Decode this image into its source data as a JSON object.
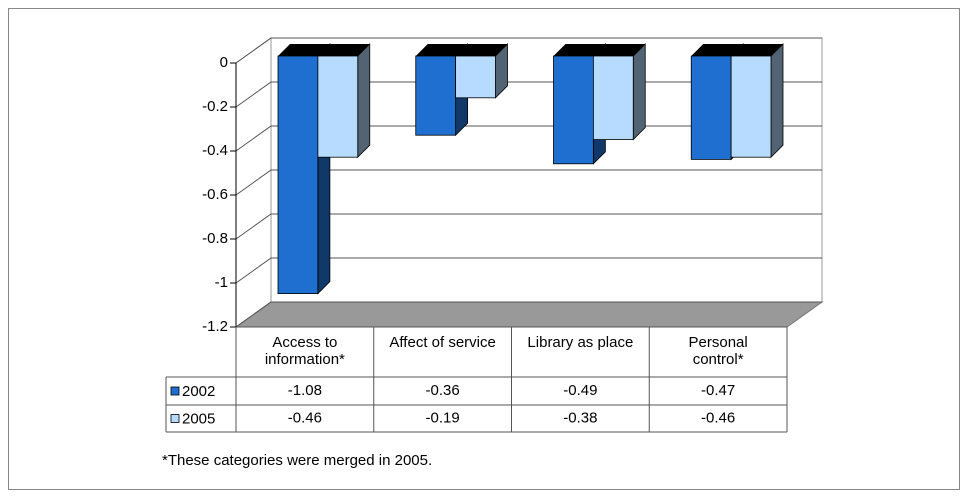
{
  "chart_data": {
    "type": "bar3d",
    "categories": [
      "Access to information*",
      "Affect of service",
      "Library as place",
      "Personal control*"
    ],
    "series": [
      {
        "name": "2002",
        "color": "#1f6fd0",
        "values": [
          -1.08,
          -0.36,
          -0.49,
          -0.47
        ]
      },
      {
        "name": "2005",
        "color": "#b7dbff",
        "values": [
          -0.46,
          -0.19,
          -0.38,
          -0.46
        ]
      }
    ],
    "ylim": [
      -1.2,
      0
    ],
    "yticks": [
      0,
      -0.2,
      -0.4,
      -0.6,
      -0.8,
      -1,
      -1.2
    ],
    "grid": true,
    "note": "*These categories were merged in 2005."
  }
}
